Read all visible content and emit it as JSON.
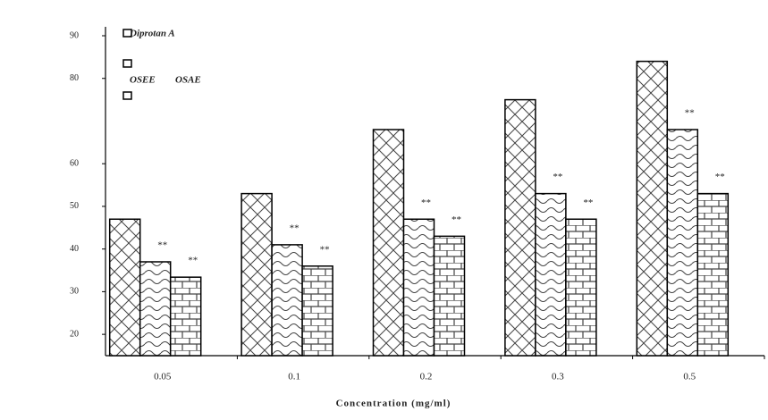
{
  "chart_data": {
    "type": "bar",
    "x_label": "Concentration (mg/ml)",
    "categories": [
      "0.05",
      "0.1",
      "0.2",
      "0.3",
      "0.5"
    ],
    "series": [
      {
        "name": "Diprotan A",
        "values": [
          47,
          53,
          68,
          75,
          84
        ]
      },
      {
        "name": "OSEE",
        "values": [
          37,
          41,
          47,
          53,
          68
        ]
      },
      {
        "name": "OSAE",
        "values": [
          33.4,
          36,
          43,
          47,
          53
        ]
      }
    ],
    "annotation": "**",
    "ylim": [
      15,
      90
    ],
    "yticks": [
      20,
      30,
      40,
      50,
      60,
      80,
      90
    ]
  }
}
